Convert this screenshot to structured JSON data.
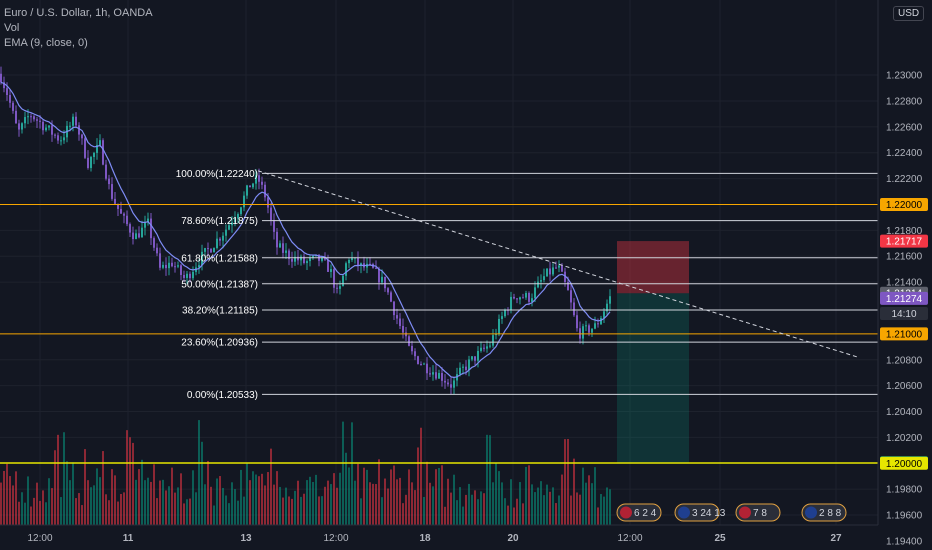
{
  "legend": {
    "symbol": "Euro / U.S. Dollar, 1h, OANDA",
    "volume": "Vol",
    "ema": "EMA (9, close, 0)"
  },
  "currency_button": "USD",
  "chart_data": {
    "type": "candlestick",
    "price_axis": {
      "ylim": [
        1.1933,
        1.2358
      ],
      "ticks": [
        "1.23000",
        "1.22800",
        "1.22600",
        "1.22400",
        "1.22200",
        "1.21800",
        "1.21600",
        "1.21400",
        "1.20800",
        "1.20600",
        "1.20400",
        "1.20200",
        "1.19800",
        "1.19600",
        "1.19400"
      ]
    },
    "time_axis": {
      "ticks": [
        "12:00",
        "11",
        "13",
        "12:00",
        "18",
        "20",
        "12:00",
        "25",
        "27"
      ],
      "bold": [
        "11",
        "13",
        "18",
        "20",
        "25",
        "27"
      ]
    },
    "price_path": [
      [
        0,
        1.2301
      ],
      [
        8,
        1.2284
      ],
      [
        18,
        1.2255
      ],
      [
        30,
        1.227
      ],
      [
        45,
        1.226
      ],
      [
        60,
        1.225
      ],
      [
        75,
        1.2266
      ],
      [
        88,
        1.2232
      ],
      [
        100,
        1.2246
      ],
      [
        110,
        1.221
      ],
      [
        122,
        1.219
      ],
      [
        135,
        1.2175
      ],
      [
        148,
        1.2185
      ],
      [
        160,
        1.215
      ],
      [
        172,
        1.2155
      ],
      [
        185,
        1.2142
      ],
      [
        200,
        1.2158
      ],
      [
        212,
        1.2168
      ],
      [
        225,
        1.218
      ],
      [
        238,
        1.2196
      ],
      [
        250,
        1.2215
      ],
      [
        258,
        1.222
      ],
      [
        266,
        1.2205
      ],
      [
        276,
        1.2168
      ],
      [
        290,
        1.216
      ],
      [
        305,
        1.2155
      ],
      [
        318,
        1.2158
      ],
      [
        330,
        1.215
      ],
      [
        338,
        1.2128
      ],
      [
        348,
        1.216
      ],
      [
        360,
        1.2152
      ],
      [
        372,
        1.215
      ],
      [
        385,
        1.2138
      ],
      [
        398,
        1.211
      ],
      [
        410,
        1.2086
      ],
      [
        425,
        1.2075
      ],
      [
        440,
        1.2068
      ],
      [
        452,
        1.206
      ],
      [
        462,
        1.2072
      ],
      [
        475,
        1.2082
      ],
      [
        490,
        1.2092
      ],
      [
        505,
        1.2118
      ],
      [
        515,
        1.213
      ],
      [
        530,
        1.2128
      ],
      [
        545,
        1.2145
      ],
      [
        558,
        1.2152
      ],
      [
        568,
        1.2132
      ],
      [
        578,
        1.21
      ],
      [
        584,
        1.2102
      ],
      [
        596,
        1.2106
      ],
      [
        610,
        1.2128
      ]
    ],
    "fibonacci": [
      {
        "label": "100.00%(1.22240)",
        "price": 1.2224
      },
      {
        "label": "78.60%(1.21875)",
        "price": 1.21875
      },
      {
        "label": "61.80%(1.21588)",
        "price": 1.21588
      },
      {
        "label": "50.00%(1.21387)",
        "price": 1.21387
      },
      {
        "label": "38.20%(1.21185)",
        "price": 1.21185
      },
      {
        "label": "23.60%(1.20936)",
        "price": 1.20936
      },
      {
        "label": "0.00%(1.20533)",
        "price": 1.20533
      }
    ],
    "horizontal_levels": [
      {
        "price": 1.22,
        "color": "#f7a600",
        "label": "1.22000"
      },
      {
        "price": 1.21,
        "color": "#f7a600",
        "label": "1.21000"
      },
      {
        "price": 1.20004,
        "color": "#e6e600",
        "label": "1.20004"
      },
      {
        "price": 1.2,
        "color": "#e6e600",
        "label": "1.20000"
      }
    ],
    "price_tags": [
      {
        "label": "1.21717",
        "price": 1.21717,
        "bg": "#f23645",
        "color": "#ffffff"
      },
      {
        "label": "1.21314",
        "price": 1.21314,
        "bg": "#5d606b",
        "color": "#ffffff"
      },
      {
        "label": "1.21274",
        "price": 1.21274,
        "bg": "#7e57c2",
        "color": "#ffffff"
      },
      {
        "label": "14:10",
        "price": 1.21235,
        "bg": "#2a2e39",
        "color": "#d1d4dc",
        "offset": 10
      },
      {
        "label": "1.21000",
        "price": 1.21,
        "bg": "#f7a600",
        "color": "#000000"
      },
      {
        "label": "1.20004",
        "price": 1.20004,
        "bg": "#089981",
        "color": "#ffffff"
      },
      {
        "label": "1.20000",
        "price": 1.2,
        "bg": "#e6e600",
        "color": "#000000"
      }
    ],
    "trendline": {
      "from": [
        258,
        1.2226
      ],
      "to": [
        858,
        1.2082
      ],
      "style": "dashed"
    },
    "position": {
      "entry": 1.21314,
      "stop": 1.21717,
      "target": 1.20004
    },
    "events": [
      {
        "flag": "us-flag",
        "label": "6 2 4"
      },
      {
        "flag": "eu-flag",
        "label": "3 24 13"
      },
      {
        "flag": "us-flag",
        "label": "7 8"
      },
      {
        "flag": "eu-flag",
        "label": "2 8 8"
      }
    ]
  }
}
